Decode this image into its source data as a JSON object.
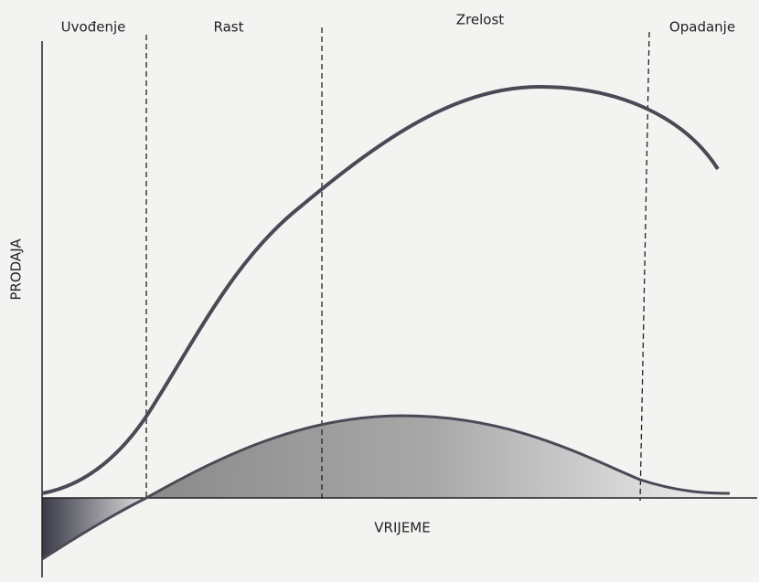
{
  "stages": [
    "Uvođenje",
    "Rast",
    "Zrelost",
    "Opadanje"
  ],
  "y_axis_label": "PRODAJA",
  "x_axis_label": "VRIJEME"
}
